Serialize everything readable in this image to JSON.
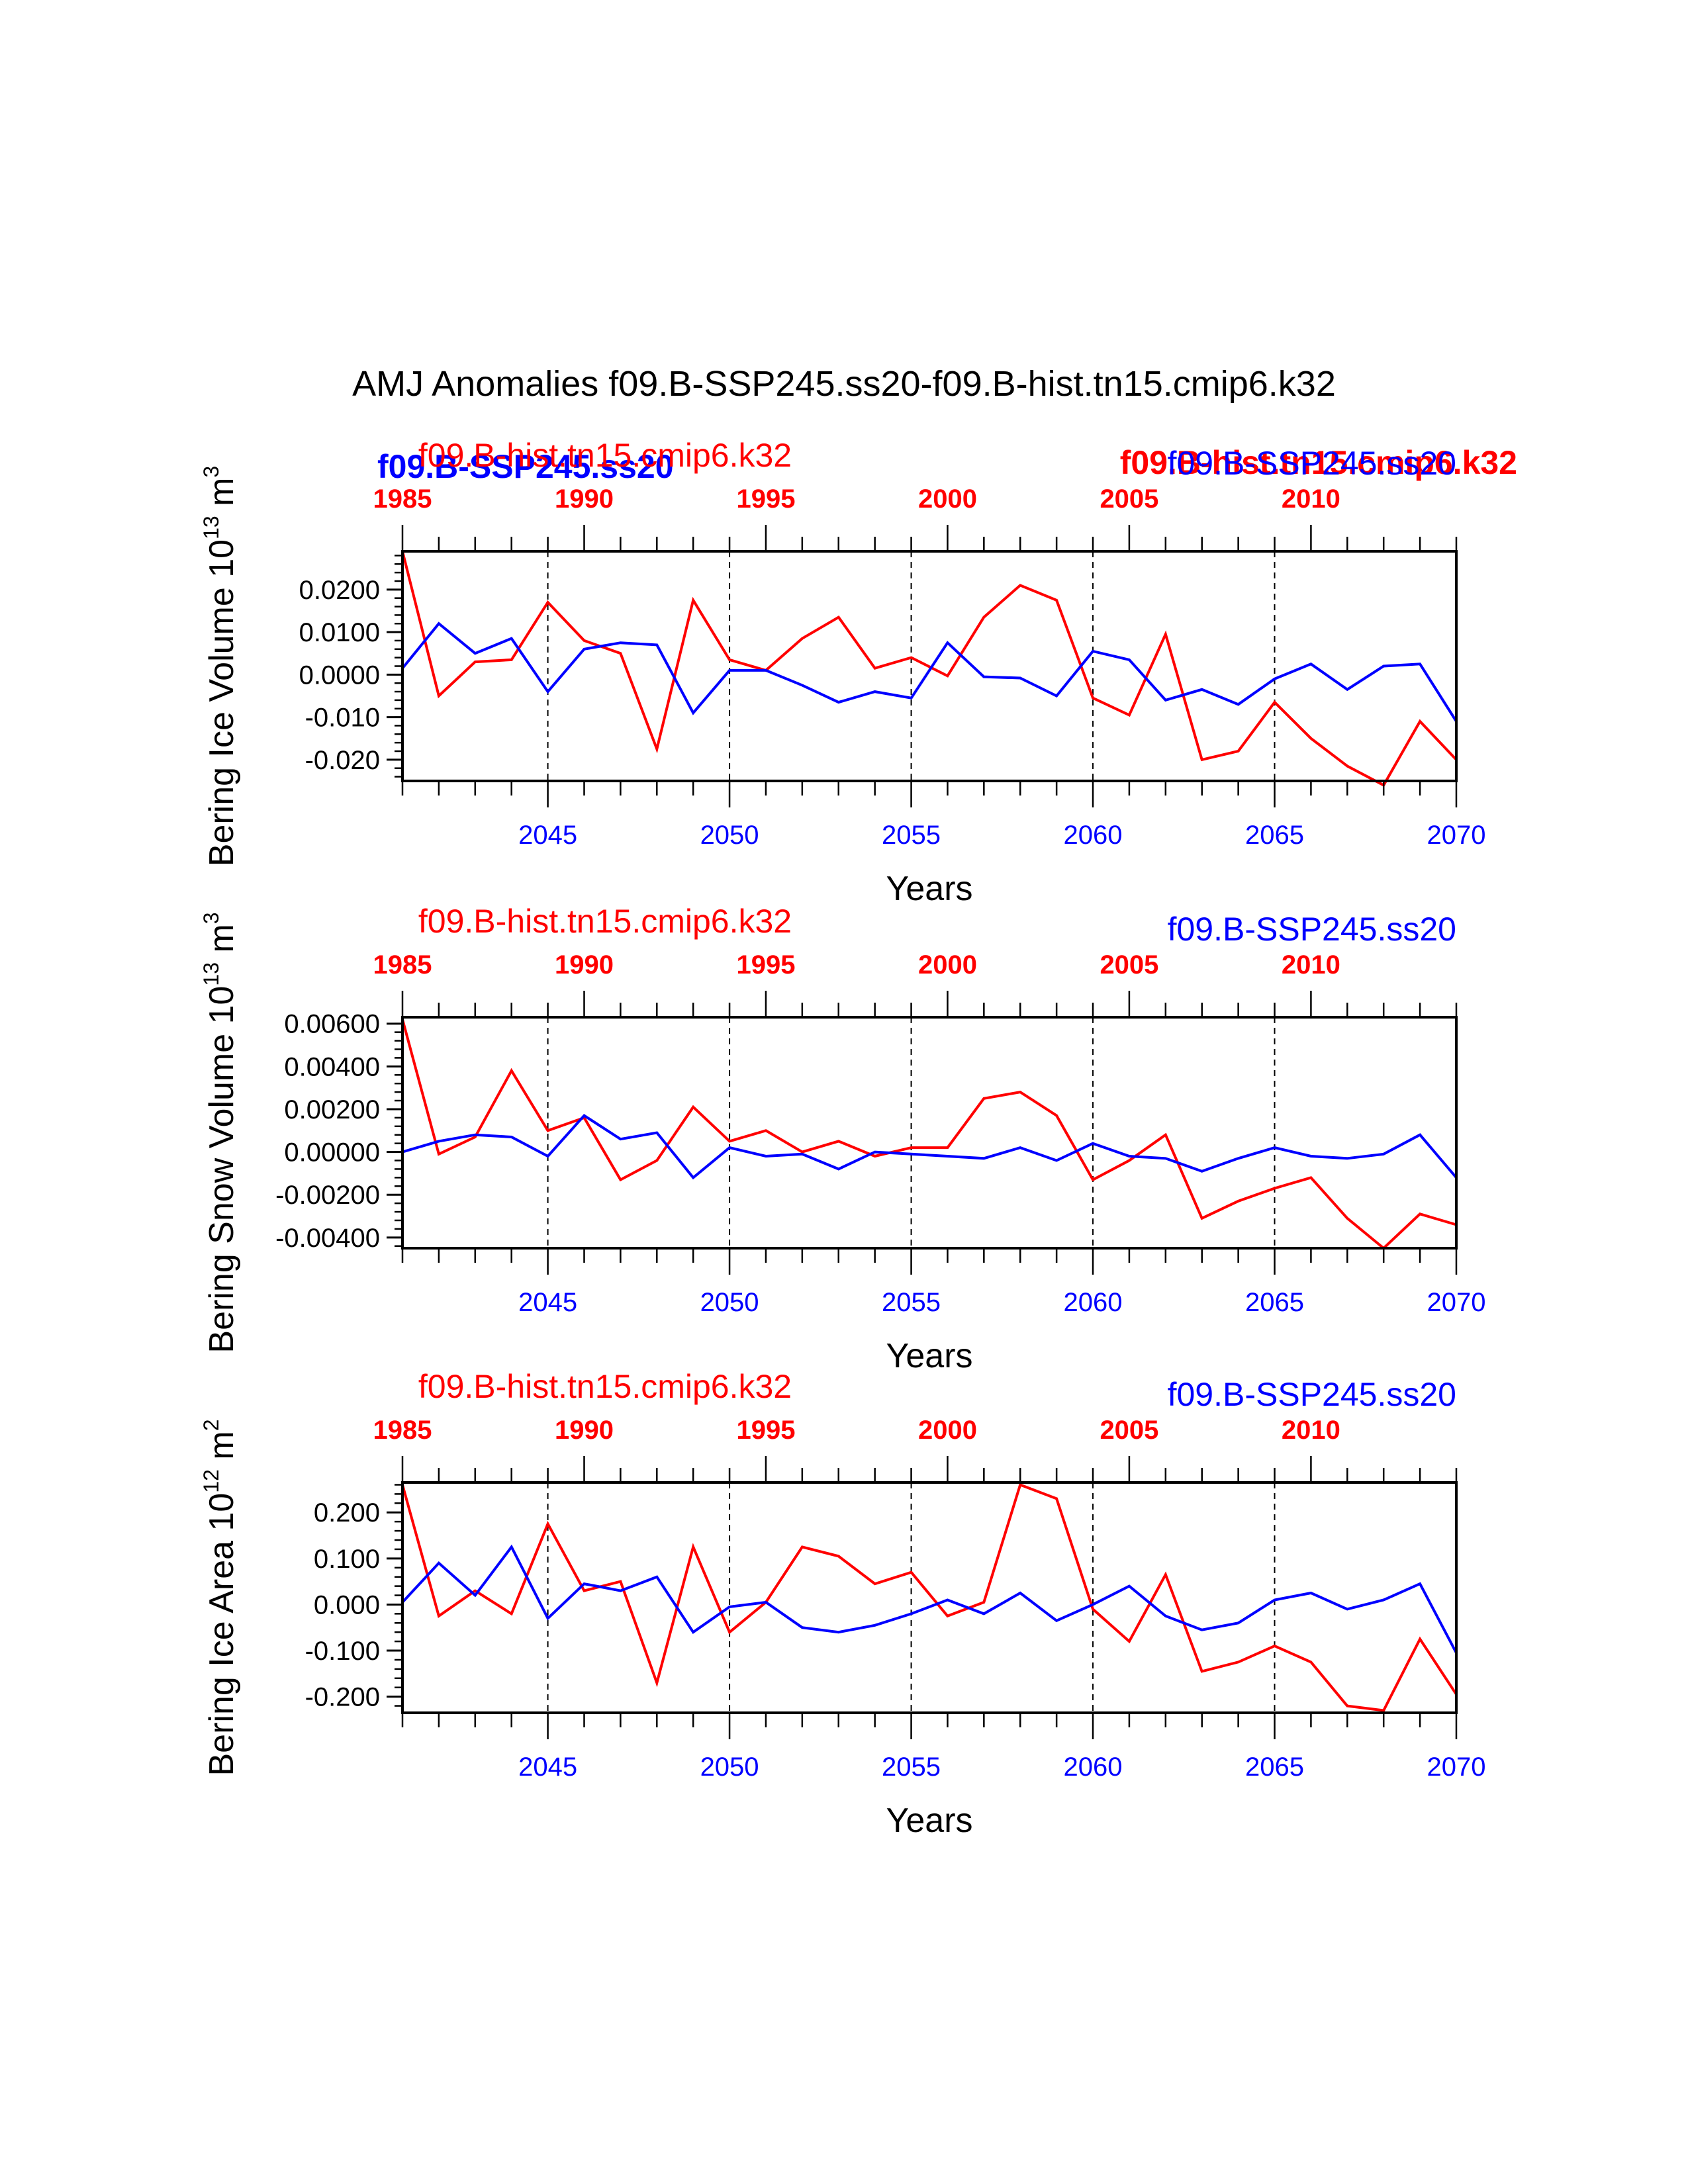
{
  "title": "AMJ Anomalies f09.B-SSP245.ss20-f09.B-hist.tn15.cmip6.k32",
  "colors": {
    "ssp": "#0000ff",
    "hist": "#ff0000",
    "axis": "#000000"
  },
  "overlay": {
    "left_label": "f09.B-SSP245.ss20",
    "right_label": "f09.B-hist.tn15.cmip6.k32"
  },
  "chart_data": [
    {
      "type": "line",
      "ylabel_main": "Bering Ice Volume 10",
      "ylabel_exp": "13",
      "ylabel_unit": " m",
      "ylabel_unit_exp": "3",
      "xlabel": "Years",
      "xlim": [
        2041,
        2070
      ],
      "top_xlim": [
        1985,
        2014
      ],
      "ylim": [
        -0.025,
        0.029
      ],
      "yticks": [
        0.02,
        0.01,
        0.0,
        -0.01,
        -0.02
      ],
      "ytick_labels": [
        "0.0200",
        "0.0100",
        "0.0000",
        "-0.010",
        "-0.020"
      ],
      "xticks_bottom": [
        "2045",
        "2050",
        "2055",
        "2060",
        "2065",
        "2070"
      ],
      "xticks_top": [
        "1985",
        "1990",
        "1995",
        "2000",
        "2005",
        "2010"
      ],
      "series": [
        {
          "name": "f09.B-hist.tn15.cmip6.k32",
          "color": "#ff0000",
          "x": [
            2041,
            2042,
            2043,
            2044,
            2045,
            2046,
            2047,
            2048,
            2049,
            2050,
            2051,
            2052,
            2053,
            2054,
            2055,
            2056,
            2057,
            2058,
            2059,
            2060,
            2061,
            2062,
            2063,
            2064,
            2065,
            2066,
            2067,
            2068,
            2069,
            2070
          ],
          "values": [
            0.029,
            -0.005,
            0.003,
            0.0035,
            0.017,
            0.008,
            0.005,
            -0.0175,
            0.0175,
            0.0035,
            0.001,
            0.0085,
            0.0135,
            0.0015,
            0.004,
            -0.0003,
            0.0135,
            0.021,
            0.0175,
            -0.0055,
            -0.0095,
            0.0095,
            -0.02,
            -0.018,
            -0.0065,
            -0.015,
            -0.0215,
            -0.026,
            -0.011,
            -0.02
          ]
        },
        {
          "name": "f09.B-SSP245.ss20",
          "color": "#0000ff",
          "x": [
            2041,
            2042,
            2043,
            2044,
            2045,
            2046,
            2047,
            2048,
            2049,
            2050,
            2051,
            2052,
            2053,
            2054,
            2055,
            2056,
            2057,
            2058,
            2059,
            2060,
            2061,
            2062,
            2063,
            2064,
            2065,
            2066,
            2067,
            2068,
            2069,
            2070
          ],
          "values": [
            0.0015,
            0.012,
            0.005,
            0.0085,
            -0.004,
            0.006,
            0.0075,
            0.007,
            -0.009,
            0.001,
            0.001,
            -0.0025,
            -0.0065,
            -0.004,
            -0.0055,
            0.0075,
            -0.0005,
            -0.0008,
            -0.005,
            0.0055,
            0.0035,
            -0.006,
            -0.0035,
            -0.007,
            -0.001,
            0.0025,
            -0.0035,
            0.002,
            0.0025,
            -0.011
          ]
        }
      ]
    },
    {
      "type": "line",
      "ylabel_main": "Bering Snow Volume 10",
      "ylabel_exp": "13",
      "ylabel_unit": " m",
      "ylabel_unit_exp": "3",
      "xlabel": "Years",
      "xlim": [
        2041,
        2070
      ],
      "top_xlim": [
        1985,
        2014
      ],
      "ylim": [
        -0.0045,
        0.0063
      ],
      "yticks": [
        0.006,
        0.004,
        0.002,
        0.0,
        -0.002,
        -0.004
      ],
      "ytick_labels": [
        "0.00600",
        "0.00400",
        "0.00200",
        "0.00000",
        "-0.00200",
        "-0.00400"
      ],
      "xticks_bottom": [
        "2045",
        "2050",
        "2055",
        "2060",
        "2065",
        "2070"
      ],
      "xticks_top": [
        "1985",
        "1990",
        "1995",
        "2000",
        "2005",
        "2010"
      ],
      "series_labels": {
        "left": "f09.B-hist.tn15.cmip6.k32",
        "right": "f09.B-SSP245.ss20"
      },
      "series": [
        {
          "name": "f09.B-hist.tn15.cmip6.k32",
          "color": "#ff0000",
          "x": [
            2041,
            2042,
            2043,
            2044,
            2045,
            2046,
            2047,
            2048,
            2049,
            2050,
            2051,
            2052,
            2053,
            2054,
            2055,
            2056,
            2057,
            2058,
            2059,
            2060,
            2061,
            2062,
            2063,
            2064,
            2065,
            2066,
            2067,
            2068,
            2069,
            2070
          ],
          "values": [
            0.0062,
            -0.0001,
            0.0007,
            0.0038,
            0.001,
            0.0016,
            -0.0013,
            -0.0004,
            0.0021,
            0.0005,
            0.001,
            0.0,
            0.0005,
            -0.0002,
            0.0002,
            0.0002,
            0.0025,
            0.0028,
            0.0017,
            -0.0013,
            -0.0004,
            0.0008,
            -0.0031,
            -0.0023,
            -0.0017,
            -0.0012,
            -0.0031,
            -0.0045,
            -0.0029,
            -0.0034
          ]
        },
        {
          "name": "f09.B-SSP245.ss20",
          "color": "#0000ff",
          "x": [
            2041,
            2042,
            2043,
            2044,
            2045,
            2046,
            2047,
            2048,
            2049,
            2050,
            2051,
            2052,
            2053,
            2054,
            2055,
            2056,
            2057,
            2058,
            2059,
            2060,
            2061,
            2062,
            2063,
            2064,
            2065,
            2066,
            2067,
            2068,
            2069,
            2070
          ],
          "values": [
            0.0,
            0.0005,
            0.0008,
            0.0007,
            -0.0002,
            0.0017,
            0.0006,
            0.0009,
            -0.0012,
            0.0002,
            -0.0002,
            -0.0001,
            -0.0008,
            0.0,
            -0.0001,
            -0.0002,
            -0.0003,
            0.0002,
            -0.0004,
            0.0004,
            -0.0002,
            -0.0003,
            -0.0009,
            -0.0003,
            0.0002,
            -0.0002,
            -0.0003,
            -0.0001,
            0.0008,
            -0.0012
          ]
        }
      ]
    },
    {
      "type": "line",
      "ylabel_main": "Bering Ice Area 10",
      "ylabel_exp": "12",
      "ylabel_unit": " m",
      "ylabel_unit_exp": "2",
      "xlabel": "Years",
      "xlim": [
        2041,
        2070
      ],
      "top_xlim": [
        1985,
        2014
      ],
      "ylim": [
        -0.235,
        0.265
      ],
      "yticks": [
        0.2,
        0.1,
        0.0,
        -0.1,
        -0.2
      ],
      "ytick_labels": [
        "0.200",
        "0.100",
        "0.000",
        "-0.100",
        "-0.200"
      ],
      "xticks_bottom": [
        "2045",
        "2050",
        "2055",
        "2060",
        "2065",
        "2070"
      ],
      "xticks_top": [
        "1985",
        "1990",
        "1995",
        "2000",
        "2005",
        "2010"
      ],
      "series_labels": {
        "left": "f09.B-hist.tn15.cmip6.k32",
        "right": "f09.B-SSP245.ss20"
      },
      "series": [
        {
          "name": "f09.B-hist.tn15.cmip6.k32",
          "color": "#ff0000",
          "x": [
            2041,
            2042,
            2043,
            2044,
            2045,
            2046,
            2047,
            2048,
            2049,
            2050,
            2051,
            2052,
            2053,
            2054,
            2055,
            2056,
            2057,
            2058,
            2059,
            2060,
            2061,
            2062,
            2063,
            2064,
            2065,
            2066,
            2067,
            2068,
            2069,
            2070
          ],
          "values": [
            0.26,
            -0.025,
            0.03,
            -0.02,
            0.175,
            0.03,
            0.05,
            -0.17,
            0.125,
            -0.06,
            0.005,
            0.125,
            0.105,
            0.045,
            0.07,
            -0.025,
            0.005,
            0.26,
            0.23,
            -0.01,
            -0.08,
            0.065,
            -0.145,
            -0.125,
            -0.09,
            -0.125,
            -0.22,
            -0.23,
            -0.075,
            -0.195
          ]
        },
        {
          "name": "f09.B-SSP245.ss20",
          "color": "#0000ff",
          "x": [
            2041,
            2042,
            2043,
            2044,
            2045,
            2046,
            2047,
            2048,
            2049,
            2050,
            2051,
            2052,
            2053,
            2054,
            2055,
            2056,
            2057,
            2058,
            2059,
            2060,
            2061,
            2062,
            2063,
            2064,
            2065,
            2066,
            2067,
            2068,
            2069,
            2070
          ],
          "values": [
            0.005,
            0.09,
            0.02,
            0.125,
            -0.03,
            0.045,
            0.03,
            0.06,
            -0.06,
            -0.005,
            0.005,
            -0.05,
            -0.06,
            -0.045,
            -0.02,
            0.01,
            -0.02,
            0.025,
            -0.035,
            0.0,
            0.04,
            -0.025,
            -0.055,
            -0.04,
            0.01,
            0.025,
            -0.01,
            0.01,
            0.045,
            -0.105
          ]
        }
      ]
    }
  ]
}
